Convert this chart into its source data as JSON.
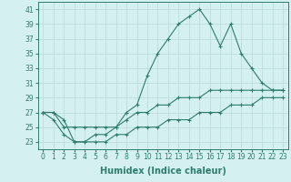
{
  "xlabel": "Humidex (Indice chaleur)",
  "x": [
    0,
    1,
    2,
    3,
    4,
    5,
    6,
    7,
    8,
    9,
    10,
    11,
    12,
    13,
    14,
    15,
    16,
    17,
    18,
    19,
    20,
    21,
    22,
    23
  ],
  "line_max": [
    27,
    27,
    26,
    23,
    23,
    24,
    24,
    25,
    27,
    28,
    32,
    35,
    37,
    39,
    40,
    41,
    39,
    36,
    39,
    35,
    33,
    31,
    30,
    30
  ],
  "line_mean": [
    27,
    27,
    25,
    25,
    25,
    25,
    25,
    25,
    26,
    27,
    27,
    28,
    28,
    29,
    29,
    29,
    30,
    30,
    30,
    30,
    30,
    30,
    30,
    30
  ],
  "line_min": [
    27,
    26,
    24,
    23,
    23,
    23,
    23,
    24,
    24,
    25,
    25,
    25,
    26,
    26,
    26,
    27,
    27,
    27,
    28,
    28,
    28,
    29,
    29,
    29
  ],
  "line_color": "#2e7d6e",
  "bg_color": "#d4f0f0",
  "grid_color": "#b8dada",
  "ylim": [
    22,
    42
  ],
  "yticks": [
    23,
    25,
    27,
    29,
    31,
    33,
    35,
    37,
    39,
    41
  ],
  "xticks": [
    0,
    1,
    2,
    3,
    4,
    5,
    6,
    7,
    8,
    9,
    10,
    11,
    12,
    13,
    14,
    15,
    16,
    17,
    18,
    19,
    20,
    21,
    22,
    23
  ],
  "tick_fontsize": 5.5,
  "xlabel_fontsize": 7,
  "marker": "+",
  "marker_size": 3,
  "linewidth": 0.8
}
